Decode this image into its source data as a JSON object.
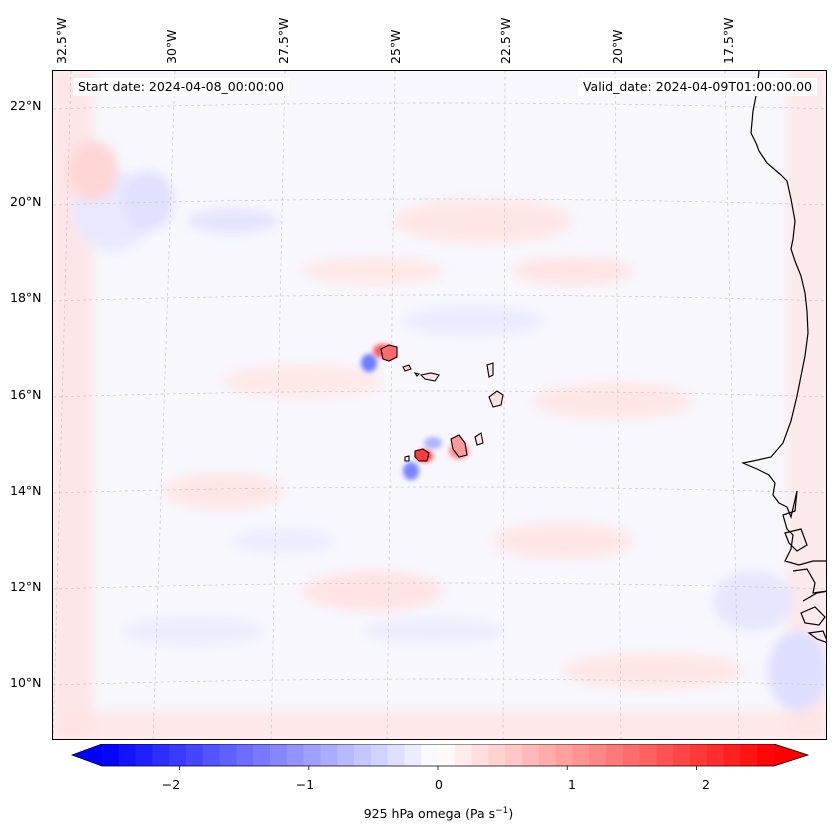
{
  "map": {
    "start_date_label": "Start date: 2024-04-08_00:00:00",
    "valid_date_label": "Valid_date: 2024-04-09T01:00:00.00",
    "lon_ticks": [
      "32.5°W",
      "30°W",
      "27.5°W",
      "25°W",
      "22.5°W",
      "20°W",
      "17.5°W"
    ],
    "lat_ticks": [
      "22°N",
      "20°N",
      "18°N",
      "16°N",
      "14°N",
      "12°N",
      "10°N"
    ],
    "extent": {
      "lon_min": -33.0,
      "lon_max": -15.5,
      "lat_min": 8.8,
      "lat_max": 22.8
    },
    "field": "925 hPa omega",
    "islands": [
      "Santo Antão",
      "São Vicente",
      "Santa Luzia",
      "São Nicolau",
      "Sal",
      "Boa Vista",
      "Maio",
      "Santiago",
      "Fogo",
      "Brava"
    ],
    "colors": {
      "positive": "#ff0000",
      "negative": "#0000ff",
      "neutral": "#ffffff",
      "coast": "#000000",
      "grid": "#b8b8b8"
    }
  },
  "colorbar": {
    "label": "925 hPa omega (Pa s",
    "label_sup": "−1",
    "label_end": ")",
    "ticks": [
      "−2",
      "−1",
      "0",
      "1",
      "2"
    ],
    "tick_values": [
      -2,
      -1,
      0,
      1,
      2
    ],
    "range": [
      -2.6,
      2.6
    ],
    "levels": 40
  }
}
